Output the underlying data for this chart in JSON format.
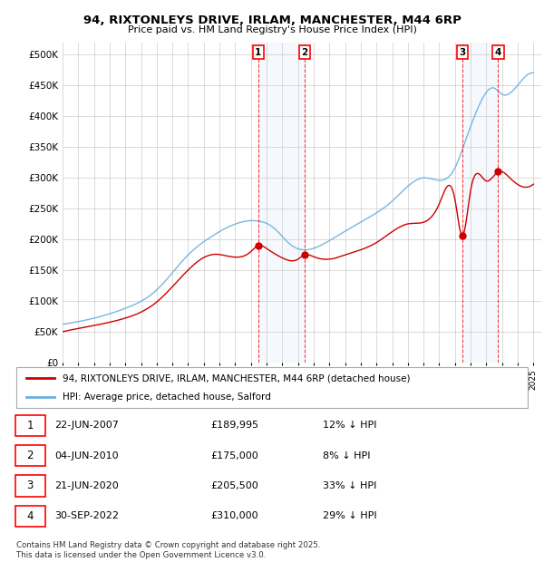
{
  "title": "94, RIXTONLEYS DRIVE, IRLAM, MANCHESTER, M44 6RP",
  "subtitle": "Price paid vs. HM Land Registry's House Price Index (HPI)",
  "hpi_color": "#6ab0de",
  "price_color": "#cc0000",
  "ylim": [
    0,
    520000
  ],
  "yticks": [
    0,
    50000,
    100000,
    150000,
    200000,
    250000,
    300000,
    350000,
    400000,
    450000,
    500000
  ],
  "purchases": [
    {
      "label": "1",
      "date": "22-JUN-2007",
      "price": 189995,
      "hpi_pct": "12% ↓ HPI",
      "x_year": 2007.47
    },
    {
      "label": "2",
      "date": "04-JUN-2010",
      "price": 175000,
      "hpi_pct": "8% ↓ HPI",
      "x_year": 2010.42
    },
    {
      "label": "3",
      "date": "21-JUN-2020",
      "price": 205500,
      "hpi_pct": "33% ↓ HPI",
      "x_year": 2020.47
    },
    {
      "label": "4",
      "date": "30-SEP-2022",
      "price": 310000,
      "hpi_pct": "29% ↓ HPI",
      "x_year": 2022.75
    }
  ],
  "legend_house_label": "94, RIXTONLEYS DRIVE, IRLAM, MANCHESTER, M44 6RP (detached house)",
  "legend_hpi_label": "HPI: Average price, detached house, Salford",
  "footnote": "Contains HM Land Registry data © Crown copyright and database right 2025.\nThis data is licensed under the Open Government Licence v3.0.",
  "xlim_left": 1995.0,
  "xlim_right": 2025.5
}
